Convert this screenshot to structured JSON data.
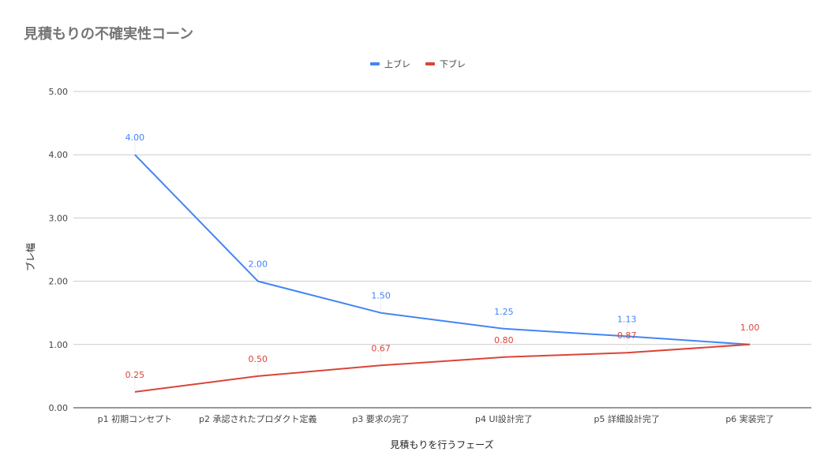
{
  "chart_data": {
    "type": "line",
    "title": "見積もりの不確実性コーン",
    "xlabel": "見積もりを行うフェーズ",
    "ylabel": "ブレ幅",
    "categories": [
      "p1 初期コンセプト",
      "p2 承認されたプロダクト定義",
      "p3 要求の完了",
      "p4 UI設計完了",
      "p5 詳細設計完了",
      "p6 実装完了"
    ],
    "ylim": [
      0,
      5
    ],
    "yticks": [
      "0.00",
      "1.00",
      "2.00",
      "3.00",
      "4.00",
      "5.00"
    ],
    "grid": true,
    "legend_position": "top",
    "series": [
      {
        "name": "上ブレ",
        "color": "#4285f4",
        "values": [
          4.0,
          2.0,
          1.5,
          1.25,
          1.13,
          1.0
        ],
        "labels": [
          "4.00",
          "2.00",
          "1.50",
          "1.25",
          "1.13",
          ""
        ]
      },
      {
        "name": "下ブレ",
        "color": "#db4437",
        "values": [
          0.25,
          0.5,
          0.67,
          0.8,
          0.87,
          1.0
        ],
        "labels": [
          "0.25",
          "0.50",
          "0.67",
          "0.80",
          "0.87",
          "1.00"
        ]
      }
    ]
  }
}
